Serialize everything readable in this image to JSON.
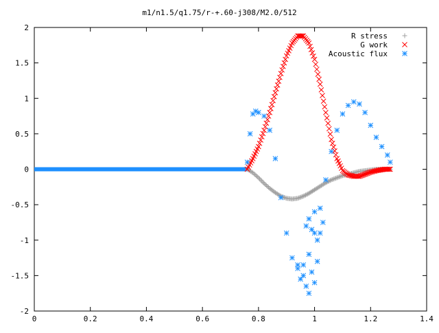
{
  "chart_data": {
    "type": "scatter",
    "title": "m1/n1.5/q1.75/r-+.60-j308/M2.0/512",
    "xlabel": "",
    "ylabel": "",
    "xlim": [
      0,
      1.4
    ],
    "ylim": [
      -2,
      2
    ],
    "x_ticks": [
      "0",
      "0.2",
      "0.4",
      "0.6",
      "0.8",
      "1",
      "1.2",
      "1.4"
    ],
    "y_ticks": [
      "2",
      "1.5",
      "1",
      "0.5",
      "0",
      "-0.5",
      "-1",
      "-1.5",
      "-2"
    ],
    "grid": false,
    "legend_position": "top-right",
    "series": [
      {
        "name": "R stress",
        "marker": "+",
        "color": "#a0a0a0",
        "points": [
          [
            0.76,
            0
          ],
          [
            0.78,
            -0.05
          ],
          [
            0.8,
            -0.12
          ],
          [
            0.82,
            -0.2
          ],
          [
            0.84,
            -0.27
          ],
          [
            0.86,
            -0.33
          ],
          [
            0.88,
            -0.38
          ],
          [
            0.9,
            -0.41
          ],
          [
            0.92,
            -0.42
          ],
          [
            0.94,
            -0.41
          ],
          [
            0.96,
            -0.38
          ],
          [
            0.98,
            -0.34
          ],
          [
            1.0,
            -0.29
          ],
          [
            1.02,
            -0.24
          ],
          [
            1.04,
            -0.19
          ],
          [
            1.06,
            -0.15
          ],
          [
            1.08,
            -0.12
          ],
          [
            1.1,
            -0.09
          ],
          [
            1.12,
            -0.07
          ],
          [
            1.14,
            -0.05
          ],
          [
            1.16,
            -0.03
          ],
          [
            1.18,
            -0.02
          ],
          [
            1.2,
            -0.01
          ],
          [
            1.22,
            0
          ],
          [
            1.25,
            0
          ],
          [
            1.27,
            0
          ]
        ]
      },
      {
        "name": "G work",
        "marker": "x",
        "color": "#ff0000",
        "points": [
          [
            0.76,
            0
          ],
          [
            0.78,
            0.15
          ],
          [
            0.8,
            0.32
          ],
          [
            0.82,
            0.55
          ],
          [
            0.84,
            0.8
          ],
          [
            0.86,
            1.08
          ],
          [
            0.88,
            1.35
          ],
          [
            0.9,
            1.6
          ],
          [
            0.92,
            1.78
          ],
          [
            0.94,
            1.88
          ],
          [
            0.96,
            1.88
          ],
          [
            0.98,
            1.78
          ],
          [
            1.0,
            1.55
          ],
          [
            1.02,
            1.2
          ],
          [
            1.04,
            0.8
          ],
          [
            1.06,
            0.42
          ],
          [
            1.08,
            0.15
          ],
          [
            1.1,
            -0.02
          ],
          [
            1.12,
            -0.08
          ],
          [
            1.14,
            -0.1
          ],
          [
            1.16,
            -0.1
          ],
          [
            1.18,
            -0.07
          ],
          [
            1.2,
            -0.04
          ],
          [
            1.22,
            -0.02
          ],
          [
            1.25,
            0
          ],
          [
            1.27,
            0
          ]
        ]
      },
      {
        "name": "Acoustic flux",
        "marker": "*",
        "color": "#1e90ff",
        "points": [
          [
            0.76,
            0.1
          ],
          [
            0.77,
            0.5
          ],
          [
            0.78,
            0.78
          ],
          [
            0.79,
            0.82
          ],
          [
            0.8,
            0.8
          ],
          [
            0.82,
            0.75
          ],
          [
            0.84,
            0.55
          ],
          [
            0.86,
            0.15
          ],
          [
            0.88,
            -0.4
          ],
          [
            0.9,
            -0.9
          ],
          [
            0.92,
            -1.25
          ],
          [
            0.94,
            -1.4
          ],
          [
            0.96,
            -1.35
          ],
          [
            0.98,
            -1.2
          ],
          [
            1.0,
            -0.9
          ],
          [
            1.02,
            -0.55
          ],
          [
            1.04,
            -0.15
          ],
          [
            1.06,
            0.25
          ],
          [
            1.08,
            0.55
          ],
          [
            1.1,
            0.78
          ],
          [
            1.12,
            0.9
          ],
          [
            1.14,
            0.95
          ],
          [
            1.16,
            0.92
          ],
          [
            1.18,
            0.8
          ],
          [
            1.2,
            0.62
          ],
          [
            1.22,
            0.45
          ],
          [
            1.24,
            0.32
          ],
          [
            1.26,
            0.2
          ],
          [
            1.27,
            0.1
          ],
          [
            0.98,
            -1.75
          ],
          [
            0.97,
            -1.65
          ],
          [
            0.95,
            -1.55
          ],
          [
            0.99,
            -1.45
          ],
          [
            1.0,
            -1.6
          ],
          [
            0.96,
            -1.5
          ],
          [
            0.94,
            -1.35
          ],
          [
            1.01,
            -1.3
          ],
          [
            0.97,
            -0.8
          ],
          [
            0.99,
            -0.85
          ],
          [
            1.01,
            -1.0
          ],
          [
            1.02,
            -0.9
          ],
          [
            0.98,
            -0.7
          ],
          [
            1.03,
            -0.75
          ],
          [
            1.0,
            -0.6
          ]
        ]
      }
    ],
    "baseline": {
      "xmin": 0,
      "xmax": 0.76,
      "value": 0,
      "color": "#1e90ff"
    }
  }
}
